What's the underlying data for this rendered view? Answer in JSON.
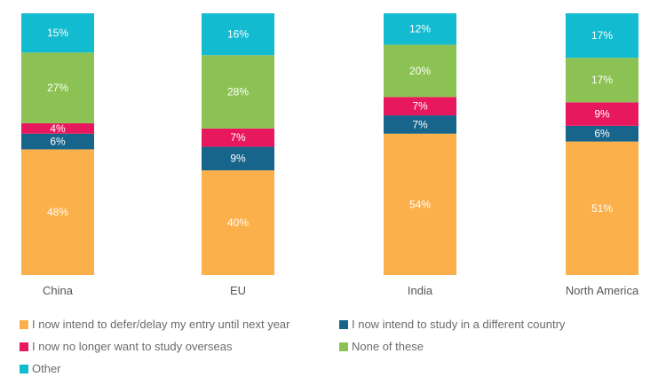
{
  "chart_data": {
    "type": "bar",
    "stacked": true,
    "categories": [
      "China",
      "EU",
      "India",
      "North America"
    ],
    "series": [
      {
        "name": "I now intend to defer/delay my entry until next year",
        "color": "#fbb04b",
        "values": [
          48,
          40,
          54,
          51
        ]
      },
      {
        "name": "I now intend to study in a different country",
        "color": "#17658a",
        "values": [
          6,
          9,
          7,
          6
        ]
      },
      {
        "name": "I now no longer want to study overseas",
        "color": "#e8185e",
        "values": [
          4,
          7,
          7,
          9
        ]
      },
      {
        "name": "None of these",
        "color": "#8cc254",
        "values": [
          27,
          28,
          20,
          17
        ]
      },
      {
        "name": "Other",
        "color": "#12bbd0",
        "values": [
          15,
          16,
          12,
          17
        ]
      }
    ],
    "labels": [
      [
        "48%",
        "40%",
        "54%",
        "51%"
      ],
      [
        "6%",
        "9%",
        "7%",
        "6%"
      ],
      [
        "4%",
        "7%",
        "7%",
        "9%"
      ],
      [
        "27%",
        "28%",
        "20%",
        "17%"
      ],
      [
        "15%",
        "16%",
        "12%",
        "17%"
      ]
    ],
    "title": "",
    "xlabel": "",
    "ylabel": "",
    "ylim": [
      0,
      100
    ],
    "grid": false,
    "legend_position": "bottom"
  }
}
